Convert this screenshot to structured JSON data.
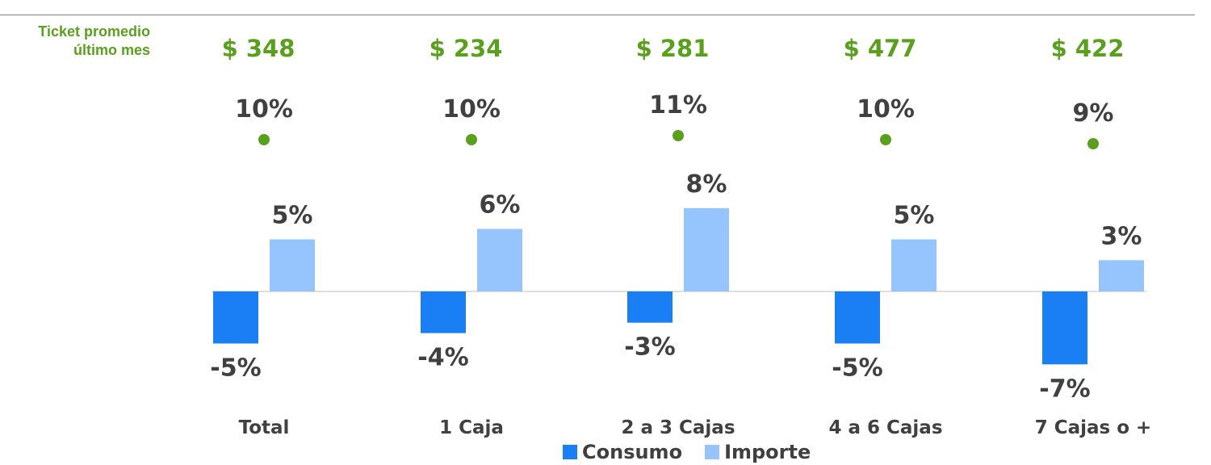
{
  "ticket": {
    "label_line1": "Ticket promedio",
    "label_line2": "último mes",
    "values": [
      "$ 348",
      "$ 234",
      "$ 281",
      "$ 477",
      "$ 422"
    ]
  },
  "colors": {
    "consumo": "#1a7ef5",
    "importe": "#96c4fc",
    "green": "#5aa01e",
    "label": "#404040"
  },
  "chart_data": {
    "type": "bar",
    "categories": [
      "Total",
      "1 Caja",
      "2 a 3 Cajas",
      "4 a 6 Cajas",
      "7 Cajas o +"
    ],
    "series": [
      {
        "name": "Consumo",
        "values": [
          -5,
          -4,
          -3,
          -5,
          -7
        ],
        "labels": [
          "-5%",
          "-4%",
          "-3%",
          "-5%",
          "-7%"
        ]
      },
      {
        "name": "Importe",
        "values": [
          5,
          6,
          8,
          5,
          3
        ],
        "labels": [
          "5%",
          "6%",
          "8%",
          "5%",
          "3%"
        ]
      }
    ],
    "dots": {
      "values": [
        10,
        10,
        11,
        10,
        9
      ],
      "labels": [
        "10%",
        "10%",
        "11%",
        "10%",
        "9%"
      ]
    },
    "legend": "bottom"
  }
}
